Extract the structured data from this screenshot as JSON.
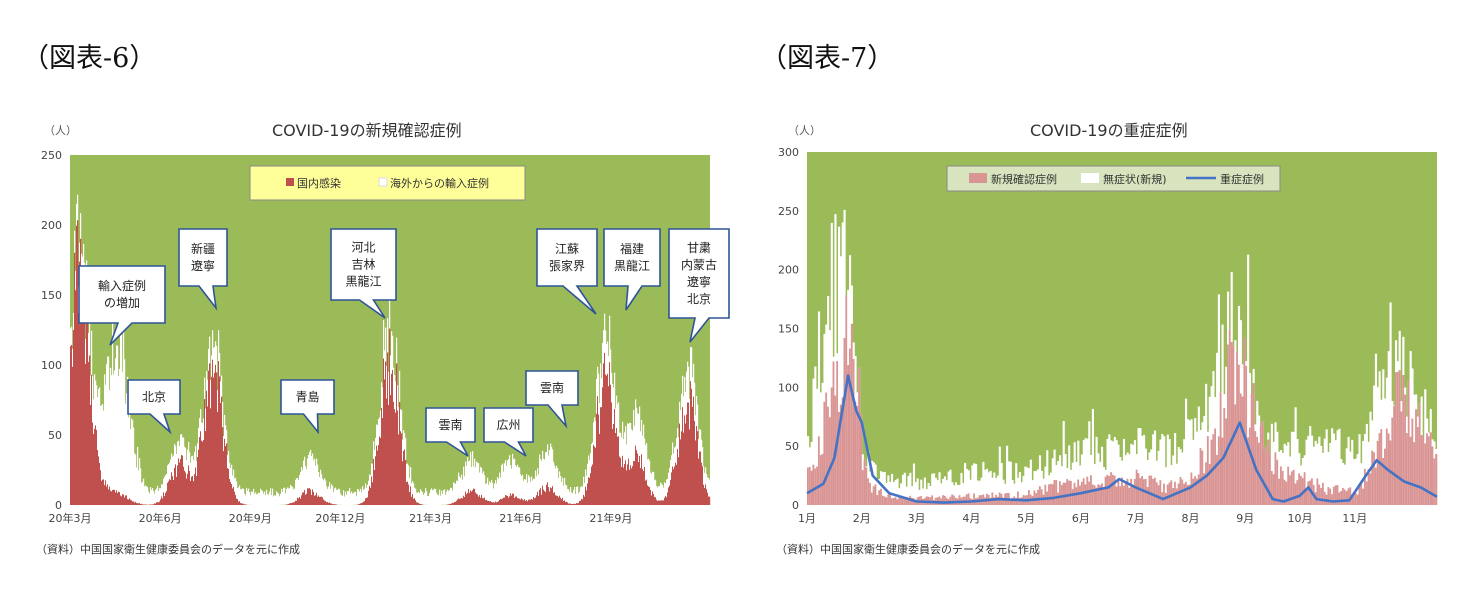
{
  "figures": {
    "fig6": "（図表-6）",
    "fig7": "（図表-7）"
  },
  "chart_data": [
    {
      "type": "bar",
      "title": "COVID-19の新規確認症例",
      "unit": "（人）",
      "source": "（資料）中国国家衛生健康委員会のデータを元に作成",
      "ylim": [
        0,
        250
      ],
      "yticks": [
        0,
        50,
        100,
        150,
        200,
        250
      ],
      "xticks": [
        "20年3月",
        "20年6月",
        "20年9月",
        "20年12月",
        "21年3月",
        "21年6月",
        "21年9月"
      ],
      "x_range": [
        "2020-03",
        "2021-12"
      ],
      "stacked": true,
      "legend": [
        "国内感染",
        "海外からの輸入症例"
      ],
      "colors": {
        "plot_bg": "#9bbb59",
        "domestic": "#c0504d",
        "imported": "#ffffff",
        "legend_bg": "#ffff99"
      },
      "outbreaks": [
        {
          "month": 0.3,
          "domestic": 200,
          "imported": 10
        },
        {
          "month": 1.2,
          "domestic": 10,
          "imported": 60
        },
        {
          "month": 1.7,
          "domestic": 6,
          "imported": 105
        },
        {
          "month": 3.6,
          "domestic": 35,
          "imported": 10
        },
        {
          "month": 4.7,
          "domestic": 110,
          "imported": 12
        },
        {
          "month": 7.9,
          "domestic": 12,
          "imported": 18
        },
        {
          "month": 10.5,
          "domestic": 120,
          "imported": 20
        },
        {
          "month": 13.2,
          "domestic": 12,
          "imported": 18
        },
        {
          "month": 14.5,
          "domestic": 8,
          "imported": 20
        },
        {
          "month": 15.7,
          "domestic": 15,
          "imported": 20
        },
        {
          "month": 17.6,
          "domestic": 100,
          "imported": 25
        },
        {
          "month": 18.6,
          "domestic": 40,
          "imported": 30
        },
        {
          "month": 20.3,
          "domestic": 85,
          "imported": 20
        }
      ],
      "annotations": [
        {
          "lines": [
            "輸入症例",
            "の増加"
          ]
        },
        {
          "lines": [
            "北京"
          ]
        },
        {
          "lines": [
            "新疆",
            "遼寧"
          ]
        },
        {
          "lines": [
            "青島"
          ]
        },
        {
          "lines": [
            "河北",
            "吉林",
            "黒龍江"
          ]
        },
        {
          "lines": [
            "雲南"
          ]
        },
        {
          "lines": [
            "広州"
          ]
        },
        {
          "lines": [
            "雲南"
          ]
        },
        {
          "lines": [
            "江蘇",
            "張家界"
          ]
        },
        {
          "lines": [
            "福建",
            "黒龍江"
          ]
        },
        {
          "lines": [
            "甘粛",
            "内蒙古",
            "遼寧",
            "北京"
          ]
        }
      ]
    },
    {
      "type": "bar",
      "title": "COVID-19の重症症例",
      "unit": "（人）",
      "source": "（資料）中国国家衛生健康委員会のデータを元に作成",
      "ylim": [
        0,
        300
      ],
      "yticks": [
        0,
        50,
        100,
        150,
        200,
        250,
        300
      ],
      "xticks": [
        "1月",
        "2月",
        "3月",
        "4月",
        "5月",
        "6月",
        "7月",
        "8月",
        "9月",
        "10月",
        "11月"
      ],
      "legend": [
        "新規確認症例",
        "無症状(新規)",
        "重症症例"
      ],
      "colors": {
        "plot_bg": "#9bbb59",
        "confirmed": "#d99594",
        "asymptomatic": "#ffffff",
        "severe": "#4472c4",
        "legend_bg": "#d7e4bd"
      },
      "confirmed_profile": [
        [
          0,
          30
        ],
        [
          0.4,
          90
        ],
        [
          0.7,
          160
        ],
        [
          0.9,
          130
        ],
        [
          1.0,
          40
        ],
        [
          1.2,
          15
        ],
        [
          1.6,
          8
        ],
        [
          2.0,
          6
        ],
        [
          3.0,
          8
        ],
        [
          4.0,
          10
        ],
        [
          4.5,
          18
        ],
        [
          5.0,
          20
        ],
        [
          5.5,
          22
        ],
        [
          6.0,
          28
        ],
        [
          6.5,
          18
        ],
        [
          7.0,
          25
        ],
        [
          7.5,
          70
        ],
        [
          7.75,
          140
        ],
        [
          8.0,
          110
        ],
        [
          8.3,
          60
        ],
        [
          8.6,
          35
        ],
        [
          9.0,
          25
        ],
        [
          9.5,
          15
        ],
        [
          10.0,
          12
        ],
        [
          10.5,
          60
        ],
        [
          10.75,
          110
        ],
        [
          11.0,
          90
        ],
        [
          11.4,
          50
        ],
        [
          11.7,
          30
        ]
      ],
      "asymptomatic_profile": [
        [
          0,
          60
        ],
        [
          0.3,
          170
        ],
        [
          0.6,
          225
        ],
        [
          0.8,
          180
        ],
        [
          0.9,
          90
        ],
        [
          1.0,
          40
        ],
        [
          1.5,
          25
        ],
        [
          2.0,
          20
        ],
        [
          2.5,
          25
        ],
        [
          3.0,
          30
        ],
        [
          3.5,
          30
        ],
        [
          4.0,
          30
        ],
        [
          4.5,
          40
        ],
        [
          5.0,
          45
        ],
        [
          5.5,
          50
        ],
        [
          6.0,
          55
        ],
        [
          6.5,
          50
        ],
        [
          7.0,
          60
        ],
        [
          7.5,
          110
        ],
        [
          7.75,
          175
        ],
        [
          8.0,
          130
        ],
        [
          8.3,
          70
        ],
        [
          8.6,
          50
        ],
        [
          9.0,
          55
        ],
        [
          9.5,
          60
        ],
        [
          10.0,
          45
        ],
        [
          10.5,
          100
        ],
        [
          10.75,
          130
        ],
        [
          11.0,
          120
        ],
        [
          11.4,
          70
        ],
        [
          11.7,
          50
        ]
      ],
      "severe_series": [
        [
          0,
          10
        ],
        [
          0.3,
          18
        ],
        [
          0.5,
          40
        ],
        [
          0.75,
          110
        ],
        [
          0.9,
          80
        ],
        [
          1.0,
          70
        ],
        [
          1.2,
          25
        ],
        [
          1.5,
          10
        ],
        [
          2.0,
          3
        ],
        [
          2.5,
          2
        ],
        [
          3.0,
          3
        ],
        [
          3.5,
          5
        ],
        [
          4.0,
          4
        ],
        [
          4.5,
          6
        ],
        [
          5.0,
          10
        ],
        [
          5.5,
          15
        ],
        [
          5.7,
          22
        ],
        [
          6.0,
          15
        ],
        [
          6.5,
          5
        ],
        [
          7.0,
          15
        ],
        [
          7.3,
          25
        ],
        [
          7.6,
          40
        ],
        [
          7.9,
          70
        ],
        [
          8.2,
          30
        ],
        [
          8.5,
          5
        ],
        [
          8.7,
          3
        ],
        [
          9.0,
          8
        ],
        [
          9.15,
          15
        ],
        [
          9.3,
          5
        ],
        [
          9.6,
          3
        ],
        [
          9.9,
          4
        ],
        [
          10.2,
          25
        ],
        [
          10.4,
          38
        ],
        [
          10.6,
          30
        ],
        [
          10.9,
          20
        ],
        [
          11.2,
          15
        ],
        [
          11.5,
          7
        ]
      ]
    }
  ]
}
